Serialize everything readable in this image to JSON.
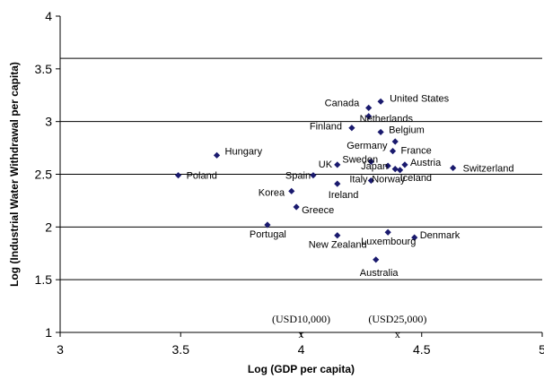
{
  "chart_data": {
    "type": "scatter",
    "title": "",
    "xlabel": "Log (GDP per capita)",
    "ylabel": "Log (Industrial Water Withdrawal per capita)",
    "xlim": [
      3,
      5
    ],
    "ylim": [
      1,
      4
    ],
    "x_ticks": [
      "3",
      "3.5",
      "4",
      "4.5",
      "5"
    ],
    "y_ticks": [
      "1",
      "1.5",
      "2",
      "2.5",
      "3",
      "3.5",
      "4"
    ],
    "gridlines_y": [
      1.5,
      2,
      2.5,
      3,
      3.6
    ],
    "marker_color": "#1a1a6e",
    "points": [
      {
        "label": "Poland",
        "x": 3.49,
        "y": 2.49
      },
      {
        "label": "Hungary",
        "x": 3.65,
        "y": 2.68
      },
      {
        "label": "Portugal",
        "x": 3.86,
        "y": 2.02
      },
      {
        "label": "Greece",
        "x": 3.98,
        "y": 2.19
      },
      {
        "label": "Korea",
        "x": 3.96,
        "y": 2.34
      },
      {
        "label": "Spain",
        "x": 4.05,
        "y": 2.49
      },
      {
        "label": "UK",
        "x": 4.15,
        "y": 2.59
      },
      {
        "label": "Ireland",
        "x": 4.15,
        "y": 2.41
      },
      {
        "label": "New Zealand",
        "x": 4.15,
        "y": 1.92
      },
      {
        "label": "Sweden",
        "x": 4.29,
        "y": 2.62
      },
      {
        "label": "Italy",
        "x": 4.29,
        "y": 2.44
      },
      {
        "label": "Australia",
        "x": 4.31,
        "y": 1.69
      },
      {
        "label": "Finland",
        "x": 4.21,
        "y": 2.94
      },
      {
        "label": "Canada",
        "x": 4.28,
        "y": 3.13
      },
      {
        "label": "United States",
        "x": 4.33,
        "y": 3.19
      },
      {
        "label": "Netherlands",
        "x": 4.28,
        "y": 3.05
      },
      {
        "label": "Belgium",
        "x": 4.33,
        "y": 2.9
      },
      {
        "label": "Germany",
        "x": 4.39,
        "y": 2.81
      },
      {
        "label": "France",
        "x": 4.38,
        "y": 2.72
      },
      {
        "label": "Japan",
        "x": 4.36,
        "y": 2.58
      },
      {
        "label": "Austria",
        "x": 4.43,
        "y": 2.59
      },
      {
        "label": "Iceland",
        "x": 4.41,
        "y": 2.54
      },
      {
        "label": "Norway",
        "x": 4.39,
        "y": 2.55
      },
      {
        "label": "Switzerland",
        "x": 4.63,
        "y": 2.56
      },
      {
        "label": "Luxembourg",
        "x": 4.36,
        "y": 1.95
      },
      {
        "label": "Denmark",
        "x": 4.47,
        "y": 1.9
      }
    ],
    "annotations": [
      {
        "text": "(USD10,000)",
        "x": 4.0,
        "y": 1.0
      },
      {
        "text": "(USD25,000)",
        "x": 4.4,
        "y": 1.0
      }
    ],
    "x_marker_text": "x"
  }
}
